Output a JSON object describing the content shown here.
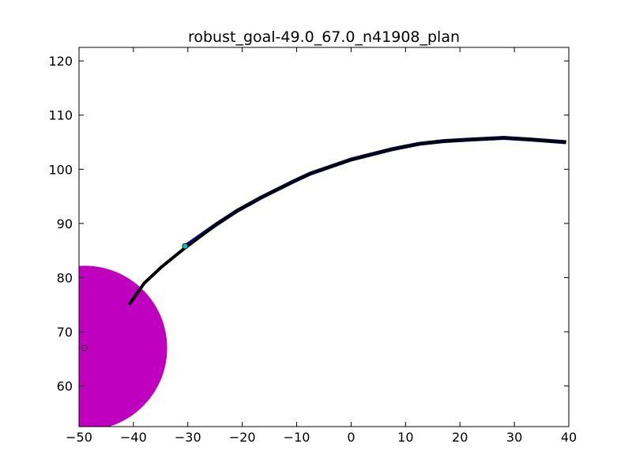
{
  "chart_data": {
    "type": "line",
    "title": "robust_goal-49.0_67.0_n41908_plan",
    "xlabel": "",
    "ylabel": "",
    "xlim": [
      -50,
      40
    ],
    "ylim": [
      52.5,
      122.5
    ],
    "xticks": [
      -50,
      -40,
      -30,
      -20,
      -10,
      0,
      10,
      20,
      30,
      40
    ],
    "yticks": [
      60,
      70,
      80,
      90,
      100,
      110,
      120
    ],
    "grid": false,
    "legend": "none",
    "series": [
      {
        "color": "#0000cc",
        "style": "thin-line",
        "x": [
          -30.5,
          -24.5,
          -21,
          -16.5,
          -10.5,
          -7.5,
          0,
          7.5,
          12.5,
          17,
          22,
          28,
          33,
          39.5
        ],
        "y": [
          85.8,
          90.0,
          92.3,
          94.8,
          97.8,
          99.2,
          101.8,
          103.7,
          104.7,
          105.2,
          105.5,
          105.8,
          105.5,
          105.0
        ]
      },
      {
        "color": "#000000",
        "style": "thick-line",
        "x": [
          -40.8,
          -38,
          -34.8,
          -30.5,
          -24.5,
          -21,
          -16.5,
          -10.5,
          -7.5,
          0,
          7.5,
          12.5,
          17,
          22,
          28,
          33,
          39.5
        ],
        "y": [
          75.0,
          79.0,
          82.0,
          85.5,
          90.0,
          92.3,
          94.8,
          97.8,
          99.2,
          101.8,
          103.7,
          104.7,
          105.2,
          105.5,
          105.8,
          105.5,
          105.0
        ]
      }
    ],
    "markers": [
      {
        "x": -30.5,
        "y": 85.8,
        "color": "#00bfbf",
        "shape": "circle"
      },
      {
        "x": -49.0,
        "y": 67.0,
        "color": "#c000c0",
        "shape": "circle"
      }
    ],
    "region": {
      "shape": "circle",
      "cx": -49.0,
      "cy": 67.0,
      "r": 15.2,
      "color": "#bf00bf"
    }
  }
}
